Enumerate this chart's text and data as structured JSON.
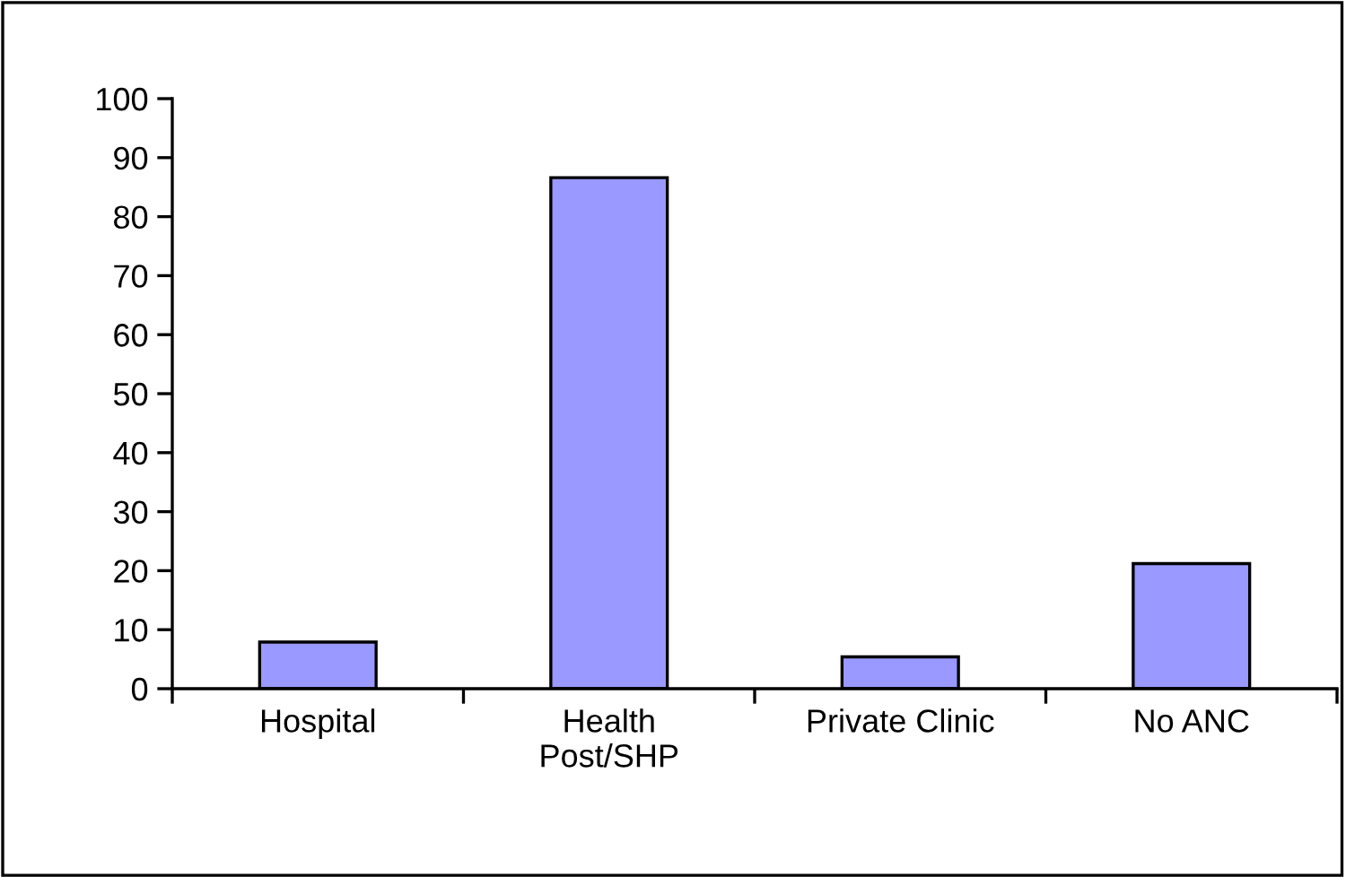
{
  "chart_data": {
    "type": "bar",
    "categories": [
      "Hospital",
      "Health\nPost/SHP",
      "Private Clinic",
      "No ANC"
    ],
    "values": [
      7.9,
      86.6,
      5.4,
      21.2
    ],
    "color": "#9999ff",
    "ylim": [
      0,
      100
    ],
    "yticks": [
      0,
      10,
      20,
      30,
      40,
      50,
      60,
      70,
      80,
      90,
      100
    ],
    "grid": false,
    "legend": false
  }
}
